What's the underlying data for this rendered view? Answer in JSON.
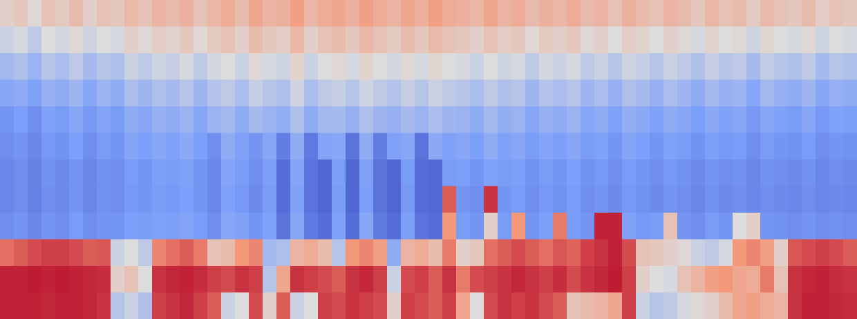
{
  "chart_data": {
    "type": "heatmap",
    "tick_labels": false,
    "color_range": [
      0,
      100
    ],
    "cells": [
      [
        55,
        58,
        52,
        60,
        57,
        62,
        55,
        60,
        58,
        63,
        60,
        65,
        62,
        66,
        60,
        64,
        68,
        62,
        70,
        65,
        66,
        72,
        64,
        68,
        70,
        66,
        72,
        68,
        65,
        70,
        67,
        72,
        68,
        66,
        64,
        70,
        65,
        68,
        62,
        66,
        64,
        68,
        62,
        65,
        60,
        66,
        63,
        60,
        65,
        62,
        58,
        64,
        60,
        62,
        57,
        63,
        60,
        58,
        62,
        56,
        60,
        58
      ],
      [
        45,
        48,
        42,
        50,
        47,
        52,
        46,
        50,
        48,
        55,
        52,
        56,
        54,
        58,
        52,
        57,
        60,
        55,
        62,
        58,
        56,
        64,
        55,
        60,
        62,
        58,
        64,
        60,
        57,
        62,
        58,
        63,
        60,
        58,
        55,
        60,
        56,
        58,
        52,
        57,
        55,
        58,
        52,
        55,
        50,
        56,
        54,
        50,
        55,
        52,
        48,
        54,
        50,
        52,
        46,
        53,
        50,
        48,
        52,
        46,
        50,
        48
      ],
      [
        35,
        38,
        33,
        40,
        37,
        42,
        36,
        40,
        38,
        45,
        42,
        46,
        44,
        48,
        42,
        47,
        50,
        45,
        52,
        48,
        46,
        54,
        45,
        50,
        52,
        48,
        54,
        50,
        47,
        52,
        48,
        53,
        50,
        48,
        45,
        50,
        46,
        48,
        42,
        47,
        45,
        48,
        42,
        45,
        40,
        46,
        44,
        40,
        45,
        42,
        38,
        44,
        40,
        42,
        36,
        43,
        40,
        38,
        42,
        36,
        40,
        38
      ],
      [
        28,
        30,
        26,
        32,
        30,
        34,
        28,
        33,
        30,
        37,
        34,
        38,
        36,
        40,
        34,
        39,
        42,
        37,
        44,
        40,
        38,
        46,
        37,
        42,
        44,
        40,
        46,
        42,
        39,
        44,
        40,
        45,
        42,
        40,
        37,
        42,
        38,
        40,
        34,
        39,
        37,
        40,
        34,
        37,
        32,
        38,
        36,
        32,
        37,
        34,
        30,
        36,
        32,
        34,
        28,
        35,
        32,
        30,
        34,
        28,
        32,
        30
      ],
      [
        22,
        25,
        20,
        26,
        24,
        28,
        23,
        27,
        24,
        30,
        28,
        32,
        30,
        33,
        28,
        33,
        35,
        30,
        36,
        33,
        31,
        38,
        30,
        35,
        36,
        32,
        38,
        34,
        32,
        36,
        33,
        37,
        34,
        33,
        30,
        35,
        31,
        33,
        28,
        32,
        30,
        33,
        28,
        30,
        26,
        31,
        29,
        26,
        30,
        28,
        25,
        29,
        26,
        28,
        23,
        28,
        26,
        24,
        28,
        23,
        26,
        25
      ],
      [
        20,
        22,
        18,
        23,
        21,
        25,
        20,
        24,
        22,
        27,
        25,
        28,
        26,
        29,
        25,
        20,
        30,
        26,
        22,
        28,
        15,
        30,
        14,
        27,
        28,
        12,
        30,
        15,
        26,
        28,
        12,
        29,
        26,
        28,
        25,
        30,
        26,
        28,
        24,
        27,
        25,
        28,
        24,
        26,
        22,
        27,
        25,
        22,
        26,
        24,
        21,
        25,
        23,
        24,
        20,
        24,
        22,
        21,
        24,
        20,
        22,
        21
      ],
      [
        18,
        20,
        16,
        21,
        19,
        22,
        18,
        21,
        20,
        24,
        22,
        25,
        24,
        26,
        22,
        18,
        27,
        24,
        20,
        25,
        10,
        27,
        12,
        8,
        25,
        8,
        26,
        12,
        8,
        24,
        10,
        9,
        24,
        25,
        22,
        26,
        24,
        25,
        21,
        24,
        22,
        25,
        21,
        23,
        20,
        24,
        22,
        20,
        23,
        21,
        19,
        22,
        20,
        21,
        18,
        21,
        20,
        19,
        21,
        18,
        20,
        19
      ],
      [
        18,
        20,
        16,
        20,
        19,
        22,
        18,
        21,
        20,
        23,
        22,
        24,
        23,
        25,
        22,
        18,
        26,
        23,
        19,
        24,
        10,
        26,
        12,
        8,
        24,
        8,
        25,
        12,
        8,
        23,
        10,
        9,
        85,
        22,
        20,
        92,
        22,
        24,
        20,
        23,
        21,
        24,
        20,
        22,
        19,
        23,
        21,
        19,
        22,
        20,
        18,
        21,
        19,
        20,
        18,
        20,
        19,
        18,
        20,
        18,
        19,
        18
      ],
      [
        20,
        22,
        18,
        22,
        20,
        24,
        20,
        22,
        22,
        25,
        24,
        26,
        25,
        27,
        24,
        20,
        28,
        26,
        22,
        26,
        12,
        28,
        14,
        10,
        26,
        10,
        28,
        14,
        10,
        25,
        12,
        10,
        75,
        24,
        22,
        55,
        24,
        75,
        22,
        25,
        80,
        24,
        22,
        95,
        95,
        26,
        23,
        24,
        60,
        22,
        20,
        24,
        22,
        50,
        55,
        22,
        21,
        20,
        22,
        20,
        21,
        20
      ],
      [
        82,
        85,
        88,
        90,
        90,
        88,
        85,
        86,
        45,
        50,
        42,
        78,
        82,
        85,
        80,
        60,
        62,
        75,
        78,
        35,
        38,
        65,
        68,
        62,
        40,
        75,
        78,
        72,
        30,
        65,
        68,
        62,
        80,
        55,
        58,
        82,
        85,
        88,
        85,
        82,
        86,
        84,
        90,
        92,
        95,
        88,
        60,
        58,
        55,
        52,
        45,
        42,
        48,
        75,
        78,
        72,
        55,
        86,
        88,
        90,
        88,
        85
      ],
      [
        95,
        95,
        96,
        95,
        96,
        95,
        94,
        93,
        55,
        60,
        50,
        92,
        94,
        95,
        93,
        90,
        88,
        92,
        90,
        40,
        70,
        92,
        90,
        88,
        85,
        92,
        94,
        90,
        45,
        88,
        90,
        85,
        92,
        80,
        88,
        90,
        92,
        94,
        92,
        90,
        93,
        88,
        92,
        94,
        96,
        90,
        55,
        50,
        48,
        60,
        65,
        72,
        75,
        70,
        68,
        80,
        60,
        92,
        94,
        95,
        93,
        92
      ],
      [
        95,
        95,
        95,
        94,
        95,
        95,
        94,
        92,
        40,
        45,
        38,
        90,
        92,
        94,
        90,
        85,
        45,
        50,
        88,
        55,
        85,
        45,
        50,
        90,
        88,
        92,
        90,
        88,
        55,
        90,
        88,
        85,
        90,
        70,
        50,
        88,
        92,
        90,
        92,
        88,
        85,
        60,
        62,
        65,
        70,
        90,
        45,
        40,
        42,
        48,
        52,
        55,
        62,
        70,
        72,
        68,
        65,
        92,
        95,
        95,
        94,
        93
      ]
    ]
  }
}
